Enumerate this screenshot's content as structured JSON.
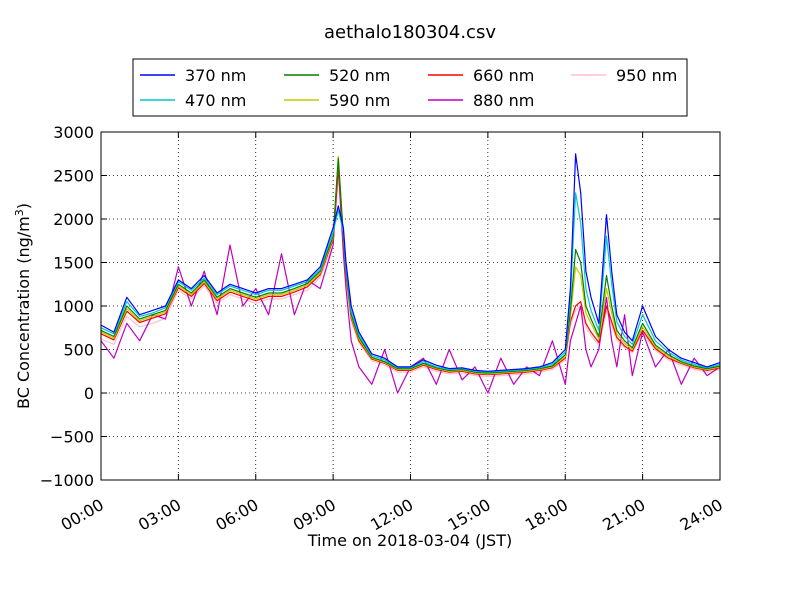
{
  "chart_data": {
    "type": "line",
    "title": "aethalo180304.csv",
    "xlabel": "Time on 2018-03-04 (JST)",
    "ylabel_main": "BC Concentration (ng/m",
    "ylabel_sup": "3",
    "ylabel_tail": ")",
    "xlim": [
      0,
      24
    ],
    "ylim": [
      -1000,
      3000
    ],
    "xticks": [
      0,
      3,
      6,
      9,
      12,
      15,
      18,
      21,
      24
    ],
    "xtick_labels": [
      "00:00",
      "03:00",
      "06:00",
      "09:00",
      "12:00",
      "15:00",
      "18:00",
      "21:00",
      "24:00"
    ],
    "yticks": [
      -1000,
      -500,
      0,
      500,
      1000,
      1500,
      2000,
      2500,
      3000
    ],
    "ytick_labels": [
      "−1000",
      "−500",
      "0",
      "500",
      "1000",
      "1500",
      "2000",
      "2500",
      "3000"
    ],
    "grid": true,
    "legend_position": "top-center",
    "x": [
      0.0,
      0.5,
      1.0,
      1.5,
      2.0,
      2.5,
      3.0,
      3.5,
      4.0,
      4.5,
      5.0,
      5.5,
      6.0,
      6.5,
      7.0,
      7.5,
      8.0,
      8.5,
      9.0,
      9.2,
      9.4,
      9.5,
      9.7,
      10.0,
      10.5,
      11.0,
      11.5,
      12.0,
      12.5,
      13.0,
      13.5,
      14.0,
      14.5,
      15.0,
      15.5,
      16.0,
      16.5,
      17.0,
      17.5,
      18.0,
      18.2,
      18.4,
      18.6,
      18.8,
      19.0,
      19.3,
      19.6,
      19.8,
      20.0,
      20.3,
      20.6,
      21.0,
      21.5,
      22.0,
      22.5,
      23.0,
      23.5,
      24.0
    ],
    "series": [
      {
        "name": "370 nm",
        "color": "#0000ff",
        "values": [
          780,
          700,
          1100,
          900,
          950,
          1000,
          1300,
          1200,
          1350,
          1150,
          1250,
          1200,
          1150,
          1200,
          1200,
          1250,
          1300,
          1450,
          1900,
          2150,
          1900,
          1500,
          1000,
          700,
          450,
          400,
          300,
          300,
          380,
          320,
          280,
          290,
          260,
          250,
          260,
          270,
          280,
          300,
          350,
          500,
          1200,
          2750,
          2300,
          1400,
          1100,
          800,
          2050,
          1400,
          900,
          700,
          600,
          1000,
          650,
          500,
          400,
          350,
          300,
          350
        ]
      },
      {
        "name": "470 nm",
        "color": "#00c8c8",
        "values": [
          750,
          680,
          1050,
          880,
          920,
          980,
          1280,
          1180,
          1320,
          1130,
          1230,
          1180,
          1130,
          1180,
          1180,
          1230,
          1280,
          1420,
          1850,
          2100,
          1850,
          1450,
          950,
          670,
          430,
          380,
          290,
          290,
          360,
          300,
          270,
          280,
          250,
          240,
          250,
          260,
          270,
          290,
          330,
          470,
          1100,
          2300,
          1950,
          1200,
          950,
          720,
          1800,
          1250,
          820,
          650,
          560,
          900,
          600,
          470,
          380,
          330,
          290,
          330
        ]
      },
      {
        "name": "520 nm",
        "color": "#008000",
        "values": [
          720,
          650,
          1000,
          850,
          900,
          950,
          1250,
          1150,
          1300,
          1100,
          1200,
          1150,
          1100,
          1150,
          1150,
          1200,
          1260,
          1400,
          1800,
          2700,
          1800,
          1400,
          900,
          640,
          410,
          360,
          280,
          280,
          340,
          290,
          260,
          270,
          240,
          230,
          240,
          250,
          260,
          280,
          310,
          440,
          950,
          1650,
          1500,
          1000,
          850,
          650,
          1350,
          1000,
          720,
          600,
          520,
          800,
          550,
          440,
          360,
          310,
          280,
          310
        ]
      },
      {
        "name": "590 nm",
        "color": "#c8c800",
        "values": [
          700,
          630,
          970,
          830,
          880,
          930,
          1230,
          1130,
          1280,
          1080,
          1180,
          1130,
          1080,
          1130,
          1130,
          1180,
          1240,
          1380,
          1780,
          2720,
          1780,
          1380,
          880,
          620,
          400,
          350,
          270,
          270,
          330,
          280,
          250,
          260,
          230,
          220,
          230,
          240,
          250,
          270,
          300,
          420,
          880,
          1450,
          1350,
          920,
          800,
          620,
          1200,
          920,
          680,
          570,
          500,
          760,
          530,
          420,
          350,
          300,
          270,
          300
        ]
      },
      {
        "name": "660 nm",
        "color": "#ff0000",
        "values": [
          680,
          610,
          940,
          810,
          860,
          910,
          1210,
          1110,
          1260,
          1060,
          1160,
          1110,
          1060,
          1110,
          1110,
          1160,
          1220,
          1360,
          1760,
          2600,
          1760,
          1360,
          860,
          600,
          390,
          340,
          260,
          260,
          320,
          270,
          240,
          250,
          220,
          210,
          220,
          230,
          240,
          260,
          290,
          400,
          820,
          1000,
          1050,
          800,
          700,
          580,
          1000,
          820,
          640,
          540,
          480,
          720,
          510,
          400,
          340,
          290,
          260,
          290
        ]
      },
      {
        "name": "880 nm",
        "color": "#bf00bf",
        "values": [
          600,
          400,
          800,
          600,
          900,
          850,
          1450,
          1000,
          1400,
          900,
          1700,
          1000,
          1200,
          900,
          1600,
          900,
          1300,
          1200,
          1700,
          2600,
          1600,
          1200,
          600,
          300,
          100,
          500,
          0,
          300,
          400,
          100,
          500,
          150,
          300,
          0,
          400,
          100,
          300,
          200,
          600,
          100,
          600,
          800,
          1000,
          500,
          300,
          500,
          1100,
          600,
          300,
          900,
          200,
          700,
          300,
          500,
          100,
          400,
          200,
          300
        ]
      },
      {
        "name": "950 nm",
        "color": "#ffc0cb",
        "values": [
          620,
          560,
          880,
          760,
          800,
          860,
          1180,
          1080,
          1230,
          1030,
          1130,
          1080,
          1030,
          1080,
          1080,
          1130,
          1180,
          1330,
          1700,
          2500,
          1700,
          1300,
          820,
          580,
          370,
          320,
          240,
          240,
          300,
          250,
          220,
          230,
          200,
          190,
          200,
          210,
          220,
          240,
          270,
          380,
          780,
          950,
          1000,
          760,
          660,
          550,
          950,
          780,
          610,
          520,
          460,
          690,
          490,
          380,
          320,
          270,
          240,
          270
        ]
      }
    ]
  }
}
